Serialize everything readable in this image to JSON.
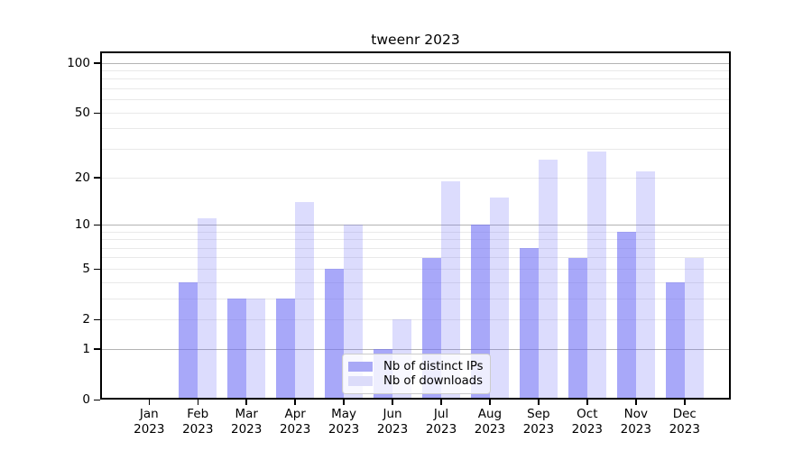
{
  "title": "tweenr 2023",
  "legend": {
    "items": [
      {
        "label": "Nb of distinct IPs",
        "swatch_color": "#a9a9f6"
      },
      {
        "label": "Nb of downloads",
        "swatch_color": "#dcdcfa"
      }
    ],
    "position": "lower center"
  },
  "colors": {
    "bar_distinct_ips": "rgba(110,110,245,0.6)",
    "bar_downloads": "rgba(110,110,245,0.24)",
    "grid_major": "#b3b3b3",
    "grid_minor": "#e9e9e9",
    "spine": "#000000",
    "text": "#000000",
    "legend_border": "#cccccc"
  },
  "chart_data": {
    "type": "bar",
    "title": "tweenr 2023",
    "categories": [
      "Jan 2023",
      "Feb 2023",
      "Mar 2023",
      "Apr 2023",
      "May 2023",
      "Jun 2023",
      "Jul 2023",
      "Aug 2023",
      "Sep 2023",
      "Oct 2023",
      "Nov 2023",
      "Dec 2023"
    ],
    "month_labels": [
      "Jan",
      "Feb",
      "Mar",
      "Apr",
      "May",
      "Jun",
      "Jul",
      "Aug",
      "Sep",
      "Oct",
      "Nov",
      "Dec"
    ],
    "year_label": "2023",
    "series": [
      {
        "name": "Nb of distinct IPs",
        "values": [
          0,
          4,
          3,
          3,
          5,
          1,
          6,
          10,
          7,
          6,
          9,
          4
        ]
      },
      {
        "name": "Nb of downloads",
        "values": [
          0,
          11,
          3,
          14,
          10,
          2,
          19,
          15,
          26,
          29,
          22,
          6
        ]
      }
    ],
    "xlabel": "",
    "ylabel": "",
    "y_scale": "log1p",
    "y_ticks": [
      0,
      1,
      2,
      5,
      10,
      20,
      50,
      100
    ],
    "ylim": [
      0,
      116
    ],
    "grid": true,
    "grid_major_values": [
      1,
      10,
      100
    ],
    "grid_minor_values": [
      2,
      3,
      4,
      5,
      6,
      7,
      8,
      9,
      20,
      30,
      40,
      50,
      60,
      70,
      80,
      90
    ],
    "legend_position": "lower center"
  }
}
